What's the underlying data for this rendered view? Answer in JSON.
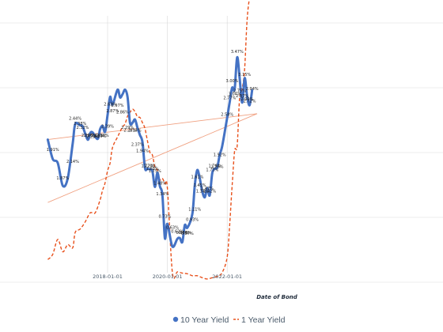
{
  "chart_data": {
    "type": "line",
    "xlabel": "Date of Bond",
    "ylabel": "",
    "x_tick_labels": [
      "2018-01-01",
      "2020-01-01",
      "2022-01-01"
    ],
    "colors": {
      "ten_year": "#4472c4",
      "one_year": "#e8501b",
      "trend": "#f0a080",
      "grid": "#d9d9d9"
    },
    "grid": true,
    "legend_position": "bottom",
    "series": [
      {
        "name": "10 Year Yield",
        "style": "solid",
        "points": [
          [
            "2016-01",
            2.2
          ],
          [
            "2016-03",
            1.9
          ],
          [
            "2016-05",
            1.84
          ],
          [
            "2016-07",
            1.49
          ],
          [
            "2016-09",
            1.6
          ],
          [
            "2016-11",
            2.14
          ],
          [
            "2016-12",
            2.44
          ],
          [
            "2017-02",
            2.42
          ],
          [
            "2017-03",
            2.4
          ],
          [
            "2017-05",
            2.2
          ],
          [
            "2017-06",
            2.3
          ],
          [
            "2017-07",
            2.31
          ],
          [
            "2017-09",
            2.21
          ],
          [
            "2017-10",
            2.36
          ],
          [
            "2017-11",
            2.41
          ],
          [
            "2017-12",
            2.32
          ],
          [
            "2018-01",
            2.58
          ],
          [
            "2018-02",
            2.86
          ],
          [
            "2018-03",
            2.74
          ],
          [
            "2018-05",
            2.97
          ],
          [
            "2018-06",
            2.85
          ],
          [
            "2018-07",
            2.9
          ],
          [
            "2018-08",
            2.97
          ],
          [
            "2018-09",
            2.86
          ],
          [
            "2018-10",
            2.46
          ],
          [
            "2018-11",
            2.46
          ],
          [
            "2018-12",
            2.51
          ],
          [
            "2019-01",
            2.38
          ],
          [
            "2019-02",
            2.27
          ],
          [
            "2019-03",
            2.16
          ],
          [
            "2019-04",
            1.76
          ],
          [
            "2019-05",
            1.75
          ],
          [
            "2019-06",
            1.74
          ],
          [
            "2019-07",
            1.71
          ],
          [
            "2019-08",
            1.47
          ],
          [
            "2019-09",
            1.69
          ],
          [
            "2019-10",
            1.48
          ],
          [
            "2019-11",
            1.34
          ],
          [
            "2019-12",
            0.68
          ],
          [
            "2020-01",
            0.9
          ],
          [
            "2020-03",
            0.55
          ],
          [
            "2020-05",
            0.67
          ],
          [
            "2020-06",
            0.68
          ],
          [
            "2020-07",
            0.62
          ],
          [
            "2020-08",
            0.88
          ],
          [
            "2020-09",
            0.84
          ],
          [
            "2020-11",
            1.05
          ],
          [
            "2020-12",
            1.5
          ],
          [
            "2021-01",
            1.73
          ],
          [
            "2021-02",
            1.6
          ],
          [
            "2021-03",
            1.4
          ],
          [
            "2021-04",
            1.31
          ],
          [
            "2021-05",
            1.45
          ],
          [
            "2021-06",
            1.34
          ],
          [
            "2021-07",
            1.68
          ],
          [
            "2021-08",
            1.75
          ],
          [
            "2021-09",
            1.77
          ],
          [
            "2021-10",
            1.97
          ],
          [
            "2021-11",
            2.1
          ],
          [
            "2022-01",
            2.54
          ],
          [
            "2022-02",
            2.78
          ],
          [
            "2022-03",
            3.0
          ],
          [
            "2022-04",
            2.98
          ],
          [
            "2022-05",
            3.47
          ],
          [
            "2022-06",
            3.15
          ],
          [
            "2022-07",
            2.77
          ],
          [
            "2022-08",
            3.15
          ],
          [
            "2022-09",
            2.87
          ],
          [
            "2022-10",
            2.73
          ],
          [
            "2022-11",
            2.96
          ]
        ]
      },
      {
        "name": "1 Year Yield",
        "style": "dashed",
        "points": [
          [
            "2016-01",
            0.35
          ],
          [
            "2016-03",
            0.43
          ],
          [
            "2016-05",
            0.66
          ],
          [
            "2016-07",
            0.47
          ],
          [
            "2016-09",
            0.58
          ],
          [
            "2016-11",
            0.53
          ],
          [
            "2016-12",
            0.77
          ],
          [
            "2017-02",
            0.82
          ],
          [
            "2017-04",
            0.93
          ],
          [
            "2017-06",
            1.07
          ],
          [
            "2017-08",
            1.07
          ],
          [
            "2017-10",
            1.27
          ],
          [
            "2017-11",
            1.42
          ],
          [
            "2017-12",
            1.53
          ],
          [
            "2018-01",
            1.72
          ],
          [
            "2018-02",
            1.84
          ],
          [
            "2018-03",
            2.08
          ],
          [
            "2018-05",
            2.24
          ],
          [
            "2018-06",
            2.32
          ],
          [
            "2018-07",
            2.4
          ],
          [
            "2018-08",
            2.44
          ],
          [
            "2018-09",
            2.56
          ],
          [
            "2018-10",
            2.62
          ],
          [
            "2018-11",
            2.67
          ],
          [
            "2018-12",
            2.63
          ],
          [
            "2019-01",
            2.55
          ],
          [
            "2019-02",
            2.54
          ],
          [
            "2019-03",
            2.46
          ],
          [
            "2019-04",
            2.37
          ],
          [
            "2019-05",
            2.18
          ],
          [
            "2019-06",
            2.0
          ],
          [
            "2019-07",
            1.96
          ],
          [
            "2019-08",
            1.77
          ],
          [
            "2019-09",
            1.73
          ],
          [
            "2019-10",
            1.58
          ],
          [
            "2019-11",
            1.6
          ],
          [
            "2019-12",
            1.52
          ],
          [
            "2020-01",
            1.45
          ],
          [
            "2020-03",
            0.15
          ],
          [
            "2020-05",
            0.16
          ],
          [
            "2020-07",
            0.14
          ],
          [
            "2020-09",
            0.13
          ],
          [
            "2020-11",
            0.1
          ],
          [
            "2021-01",
            0.1
          ],
          [
            "2021-03",
            0.07
          ],
          [
            "2021-05",
            0.05
          ],
          [
            "2021-07",
            0.07
          ],
          [
            "2021-09",
            0.09
          ],
          [
            "2021-11",
            0.15
          ],
          [
            "2022-01",
            0.39
          ],
          [
            "2022-02",
            0.89
          ],
          [
            "2022-03",
            1.5
          ],
          [
            "2022-04",
            2.03
          ],
          [
            "2022-05",
            2.1
          ],
          [
            "2022-06",
            2.85
          ],
          [
            "2022-07",
            2.98
          ],
          [
            "2022-08",
            3.3
          ],
          [
            "2022-09",
            4.05
          ],
          [
            "2022-10",
            4.4
          ],
          [
            "2022-11",
            4.6
          ]
        ]
      }
    ],
    "trendlines": [
      {
        "series": "10 Year Yield",
        "start": [
          "2016-01",
          2.2
        ],
        "end": [
          "2023-01",
          2.6
        ]
      },
      {
        "series": "1 Year Yield",
        "start": [
          "2016-01",
          1.23
        ],
        "end": [
          "2023-01",
          2.6
        ]
      }
    ],
    "data_labels": [
      [
        "2016-03",
        2.0,
        "1.91%"
      ],
      [
        "2016-07",
        1.56,
        "1.87%"
      ],
      [
        "2016-11",
        1.82,
        "2.14%"
      ],
      [
        "2016-12",
        2.48,
        "2.44%"
      ],
      [
        "2017-02",
        2.4,
        "2.38%"
      ],
      [
        "2017-03",
        2.34,
        "2.32%"
      ],
      [
        "2017-05",
        2.22,
        "2.29%"
      ],
      [
        "2017-06",
        2.22,
        "2.26%"
      ],
      [
        "2017-07",
        2.2,
        "2.22%"
      ],
      [
        "2017-09",
        2.22,
        "2.14%"
      ],
      [
        "2017-10",
        2.21,
        "2.20%"
      ],
      [
        "2017-11",
        2.22,
        "2.10%"
      ],
      [
        "2018-01",
        2.36,
        "2.39%"
      ],
      [
        "2018-02",
        2.7,
        "2.63%"
      ],
      [
        "2018-03",
        2.6,
        "2.87%"
      ],
      [
        "2018-05",
        2.68,
        "2.97%"
      ],
      [
        "2018-07",
        2.58,
        "2.86%"
      ],
      [
        "2018-09",
        2.34,
        "2.29%"
      ],
      [
        "2018-10",
        2.3,
        "2.24%"
      ],
      [
        "2018-12",
        2.3,
        "2.14%"
      ],
      [
        "2019-01",
        2.08,
        "2.37%"
      ],
      [
        "2019-03",
        1.98,
        "1.94%"
      ],
      [
        "2019-05",
        1.75,
        "1.72%"
      ],
      [
        "2019-06",
        1.75,
        "1.70%"
      ],
      [
        "2019-07",
        1.71,
        "1.68%"
      ],
      [
        "2019-08",
        1.67,
        "1.75%"
      ],
      [
        "2019-10",
        1.48,
        "1.48%"
      ],
      [
        "2019-11",
        1.32,
        "1.34%"
      ],
      [
        "2019-12",
        0.97,
        "0.73%"
      ],
      [
        "2020-03",
        0.8,
        "0.63%"
      ],
      [
        "2020-05",
        0.74,
        "0.62%"
      ],
      [
        "2020-07",
        0.72,
        "0.68%"
      ],
      [
        "2020-08",
        0.72,
        "0.64%"
      ],
      [
        "2020-09",
        0.71,
        "0.87%"
      ],
      [
        "2020-11",
        0.92,
        "0.93%"
      ],
      [
        "2020-12",
        1.08,
        "1.11%"
      ],
      [
        "2021-01",
        1.58,
        "1.61%"
      ],
      [
        "2021-02",
        1.45,
        "1.45%"
      ],
      [
        "2021-03",
        1.36,
        "1.34%"
      ],
      [
        "2021-05",
        1.4,
        "1.47%"
      ],
      [
        "2021-06",
        1.36,
        "1.42%"
      ],
      [
        "2021-07",
        1.69,
        "1.73%"
      ],
      [
        "2021-08",
        1.75,
        "1.76%"
      ],
      [
        "2021-09",
        1.74,
        "1.76%"
      ],
      [
        "2021-10",
        1.92,
        "1.92%"
      ],
      [
        "2022-01",
        2.54,
        "2.58%"
      ],
      [
        "2022-02",
        2.8,
        "2.77%"
      ],
      [
        "2022-03",
        3.06,
        "3.00%"
      ],
      [
        "2022-04",
        2.86,
        "3.04%"
      ],
      [
        "2022-05",
        3.51,
        "3.47%"
      ],
      [
        "2022-06",
        2.91,
        "2.75%"
      ],
      [
        "2022-07",
        2.83,
        "2.97%"
      ],
      [
        "2022-08",
        3.16,
        "3.15%"
      ],
      [
        "2022-09",
        2.78,
        "2.90%"
      ],
      [
        "2022-10",
        2.75,
        "2.72%"
      ],
      [
        "2022-11",
        2.94,
        "2.94%"
      ]
    ]
  }
}
